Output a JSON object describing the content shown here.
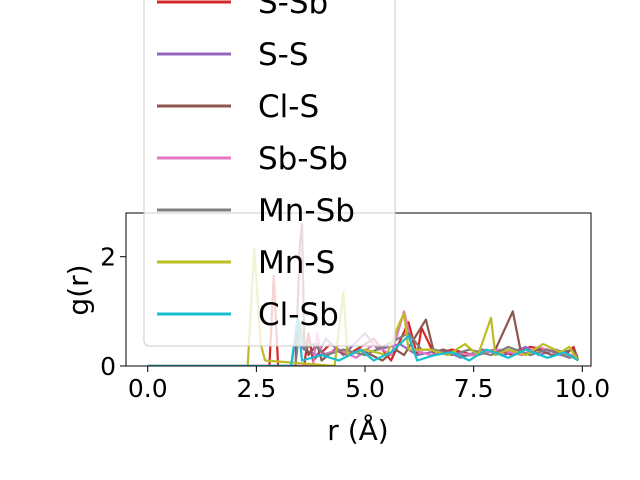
{
  "chart_data": {
    "type": "line",
    "title": "",
    "xlabel": "r (Å)",
    "ylabel": "g(r)",
    "xlim": [
      -0.5,
      10.2
    ],
    "ylim": [
      0,
      2.8
    ],
    "xticks": [
      {
        "value": 0.0,
        "label": "0.0"
      },
      {
        "value": 2.5,
        "label": "2.5"
      },
      {
        "value": 5.0,
        "label": "5.0"
      },
      {
        "value": 7.5,
        "label": "7.5"
      },
      {
        "value": 10.0,
        "label": "10.0"
      }
    ],
    "yticks": [
      {
        "value": 0,
        "label": "0"
      },
      {
        "value": 2,
        "label": "2"
      }
    ],
    "grid": false,
    "legend": "upper-left, extending above plot area",
    "series": [
      {
        "name": "S-Sb",
        "color": "#d62728",
        "points": [
          [
            0,
            0
          ],
          [
            2.8,
            0
          ],
          [
            2.9,
            1.65
          ],
          [
            3.0,
            0
          ],
          [
            3.6,
            0
          ],
          [
            3.7,
            0.6
          ],
          [
            3.8,
            0.1
          ],
          [
            4.2,
            0.4
          ],
          [
            4.6,
            0.2
          ],
          [
            5.2,
            0.5
          ],
          [
            5.6,
            0.1
          ],
          [
            6.0,
            0.8
          ],
          [
            6.2,
            0.2
          ],
          [
            6.3,
            0.7
          ],
          [
            6.6,
            0.2
          ],
          [
            7.0,
            0.3
          ],
          [
            7.5,
            0.2
          ],
          [
            8.0,
            0.3
          ],
          [
            8.4,
            0.2
          ],
          [
            8.8,
            0.35
          ],
          [
            9.2,
            0.3
          ],
          [
            9.6,
            0.2
          ],
          [
            9.8,
            0.35
          ],
          [
            9.9,
            0.1
          ]
        ]
      },
      {
        "name": "S-S",
        "color": "#9467bd",
        "points": [
          [
            0,
            0
          ],
          [
            3.3,
            0
          ],
          [
            3.4,
            0.5
          ],
          [
            3.6,
            0.3
          ],
          [
            3.9,
            0.2
          ],
          [
            4.1,
            0.5
          ],
          [
            4.5,
            0.2
          ],
          [
            5.0,
            0.6
          ],
          [
            5.3,
            0.3
          ],
          [
            5.8,
            0.4
          ],
          [
            6.2,
            0.2
          ],
          [
            6.8,
            0.3
          ],
          [
            7.2,
            0.15
          ],
          [
            7.7,
            0.3
          ],
          [
            8.2,
            0.2
          ],
          [
            8.7,
            0.35
          ],
          [
            9.0,
            0.2
          ],
          [
            9.4,
            0.3
          ],
          [
            9.9,
            0.15
          ]
        ]
      },
      {
        "name": "Cl-S",
        "color": "#8c564b",
        "points": [
          [
            0,
            0
          ],
          [
            3.4,
            0
          ],
          [
            3.5,
            2.2
          ],
          [
            3.55,
            2.6
          ],
          [
            3.6,
            0.5
          ],
          [
            3.7,
            0.2
          ],
          [
            3.9,
            0.4
          ],
          [
            4.0,
            0.1
          ],
          [
            4.3,
            0.3
          ],
          [
            4.6,
            0.2
          ],
          [
            4.9,
            0.3
          ],
          [
            5.4,
            0.1
          ],
          [
            5.7,
            0.3
          ],
          [
            5.9,
            0.2
          ],
          [
            6.4,
            0.85
          ],
          [
            6.6,
            0.2
          ],
          [
            6.8,
            0.3
          ],
          [
            7.2,
            0.2
          ],
          [
            7.6,
            0.2
          ],
          [
            8.0,
            0.3
          ],
          [
            8.4,
            1.0
          ],
          [
            8.6,
            0.2
          ],
          [
            9.0,
            0.3
          ],
          [
            9.3,
            0.2
          ],
          [
            9.8,
            0.3
          ],
          [
            9.9,
            0.1
          ]
        ]
      },
      {
        "name": "Sb-Sb",
        "color": "#e377c2",
        "points": [
          [
            0,
            0
          ],
          [
            3.8,
            0
          ],
          [
            3.9,
            0.6
          ],
          [
            4.0,
            0.2
          ],
          [
            4.4,
            0.3
          ],
          [
            4.8,
            0.15
          ],
          [
            5.2,
            0.4
          ],
          [
            5.6,
            0.2
          ],
          [
            5.9,
            1.0
          ],
          [
            6.1,
            0.3
          ],
          [
            6.5,
            0.2
          ],
          [
            7.0,
            0.25
          ],
          [
            7.5,
            0.2
          ],
          [
            8.1,
            0.3
          ],
          [
            8.6,
            0.2
          ],
          [
            9.0,
            0.35
          ],
          [
            9.5,
            0.2
          ],
          [
            9.9,
            0.2
          ]
        ]
      },
      {
        "name": "Mn-Sb",
        "color": "#7f7f7f",
        "points": [
          [
            0,
            0
          ],
          [
            3.4,
            0
          ],
          [
            3.5,
            0.8
          ],
          [
            3.6,
            0.3
          ],
          [
            3.8,
            0.4
          ],
          [
            4.1,
            0.2
          ],
          [
            4.5,
            0.3
          ],
          [
            5.0,
            0.2
          ],
          [
            5.4,
            0.35
          ],
          [
            6.0,
            0.6
          ],
          [
            6.3,
            0.3
          ],
          [
            6.6,
            0.3
          ],
          [
            7.0,
            0.2
          ],
          [
            7.4,
            0.3
          ],
          [
            7.9,
            0.2
          ],
          [
            8.3,
            0.35
          ],
          [
            8.8,
            0.2
          ],
          [
            9.2,
            0.3
          ],
          [
            9.7,
            0.15
          ],
          [
            9.9,
            0.2
          ]
        ]
      },
      {
        "name": "Mn-S",
        "color": "#bcbd22",
        "points": [
          [
            0,
            0
          ],
          [
            2.3,
            0
          ],
          [
            2.45,
            2.15
          ],
          [
            2.6,
            0.4
          ],
          [
            2.7,
            0.1
          ],
          [
            4.3,
            0
          ],
          [
            4.5,
            1.35
          ],
          [
            4.6,
            0.2
          ],
          [
            5.0,
            0.3
          ],
          [
            5.5,
            0.2
          ],
          [
            5.8,
            0.8
          ],
          [
            5.9,
            0.95
          ],
          [
            6.0,
            0.3
          ],
          [
            6.5,
            0.3
          ],
          [
            6.9,
            0.2
          ],
          [
            7.3,
            0.4
          ],
          [
            7.6,
            0.2
          ],
          [
            7.9,
            0.88
          ],
          [
            8.0,
            0.2
          ],
          [
            8.3,
            0.3
          ],
          [
            8.7,
            0.2
          ],
          [
            9.1,
            0.4
          ],
          [
            9.5,
            0.25
          ],
          [
            9.7,
            0.35
          ],
          [
            9.9,
            0.1
          ]
        ]
      },
      {
        "name": "Cl-Sb",
        "color": "#17becf",
        "points": [
          [
            0,
            0
          ],
          [
            3.3,
            0
          ],
          [
            3.45,
            0.9
          ],
          [
            3.55,
            0.1
          ],
          [
            4.0,
            0.2
          ],
          [
            4.4,
            0.1
          ],
          [
            4.9,
            0.3
          ],
          [
            5.2,
            0.1
          ],
          [
            5.6,
            0.25
          ],
          [
            6.0,
            0.55
          ],
          [
            6.2,
            0.1
          ],
          [
            6.6,
            0.2
          ],
          [
            7.0,
            0.25
          ],
          [
            7.4,
            0.1
          ],
          [
            7.8,
            0.3
          ],
          [
            8.3,
            0.15
          ],
          [
            8.7,
            0.3
          ],
          [
            9.2,
            0.15
          ],
          [
            9.6,
            0.25
          ],
          [
            9.9,
            0.1
          ]
        ]
      }
    ]
  }
}
